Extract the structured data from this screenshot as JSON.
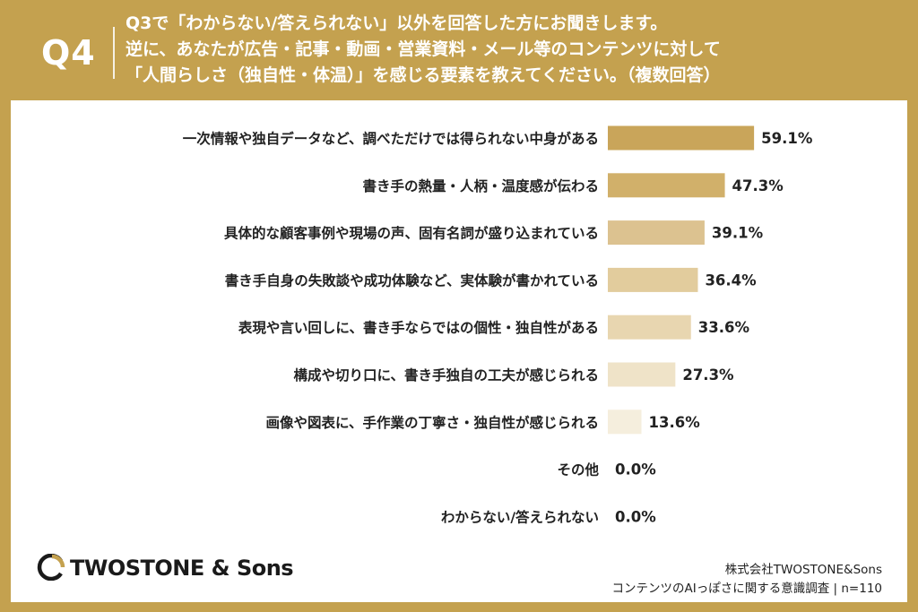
{
  "header": {
    "question_label": "Q4",
    "question_lines": [
      "Q3で「わからない/答えられない」以外を回答した方にお聞きします。",
      "逆に、あなたが広告・記事・動画・営業資料・メール等のコンテンツに対して",
      "「人間らしさ（独自性・体温）」を感じる要素を教えてください。（複数回答）"
    ]
  },
  "colors": {
    "background": "#c4a14f",
    "panel": "#ffffff",
    "text": "#222222",
    "logo_mark": "#c4a14f"
  },
  "chart_data": {
    "type": "bar",
    "orientation": "horizontal",
    "categories": [
      "一次情報や独自データなど、調べただけでは得られない中身がある",
      "書き手の熱量・人柄・温度感が伝わる",
      "具体的な顧客事例や現場の声、固有名詞が盛り込まれている",
      "書き手自身の失敗談や成功体験など、実体験が書かれている",
      "表現や言い回しに、書き手ならではの個性・独自性がある",
      "構成や切り口に、書き手独自の工夫が感じられる",
      "画像や図表に、手作業の丁寧さ・独自性が感じられる",
      "その他",
      "わからない/答えられない"
    ],
    "values": [
      59.1,
      47.3,
      39.1,
      36.4,
      33.6,
      27.3,
      13.6,
      0.0,
      0.0
    ],
    "value_labels": [
      "59.1%",
      "47.3%",
      "39.1%",
      "36.4%",
      "33.6%",
      "27.3%",
      "13.6%",
      "0.0%",
      "0.0%"
    ],
    "bar_colors": [
      "#c9a55a",
      "#d1b06a",
      "#dcc290",
      "#e2cc9d",
      "#e8d6b0",
      "#efe3c8",
      "#f5eedd",
      "#f8f3e8",
      "#f8f3e8"
    ],
    "xlim": [
      0,
      100
    ],
    "grid": false,
    "legend": "none"
  },
  "logo": {
    "brand": "TWOSTONE",
    "brand_suffix": "& Sons"
  },
  "footer": {
    "company": "株式会社TWOSTONE&Sons",
    "survey": "コンテンツのAIっぽさに関する意識調査 | n=110"
  }
}
